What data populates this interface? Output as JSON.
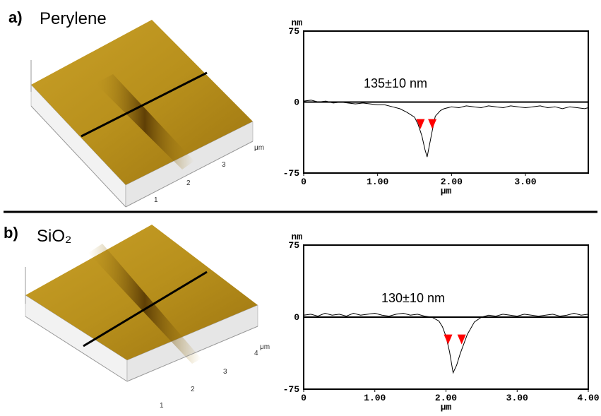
{
  "panels": [
    {
      "label": "a)",
      "title": "Perylene",
      "afm_axis_ticks": [
        "1",
        "2",
        "3"
      ],
      "afm_axis_unit": "μm"
    },
    {
      "label": "b)",
      "title": "SiO₂",
      "afm_axis_ticks": [
        "1",
        "2",
        "3",
        "4"
      ],
      "afm_axis_unit": "μm"
    }
  ],
  "chart_data": [
    {
      "type": "line",
      "y_label": "nm",
      "x_label": "μm",
      "annotation": "135±10 nm",
      "xlim": [
        0,
        3.85
      ],
      "ylim": [
        -75,
        75
      ],
      "xticks": [
        0,
        {
          "value": 1,
          "label": "1.00"
        },
        {
          "value": 2,
          "label": "2.00"
        },
        {
          "value": 3,
          "label": "3.00"
        }
      ],
      "yticks": [
        75,
        0,
        -75
      ],
      "series": [
        {
          "color": "#000000",
          "x": [
            0,
            0.1,
            0.2,
            0.3,
            0.4,
            0.5,
            0.6,
            0.7,
            0.8,
            0.9,
            1.0,
            1.1,
            1.2,
            1.3,
            1.4,
            1.5,
            1.55,
            1.6,
            1.64,
            1.67,
            1.7,
            1.74,
            1.78,
            1.85,
            1.9,
            2.0,
            2.1,
            2.2,
            2.3,
            2.4,
            2.5,
            2.6,
            2.7,
            2.8,
            2.9,
            3.0,
            3.1,
            3.2,
            3.3,
            3.4,
            3.5,
            3.6,
            3.7,
            3.8,
            3.85
          ],
          "values": [
            1,
            2,
            0,
            1,
            -1,
            0,
            -1,
            -2,
            -1,
            -2,
            -3,
            -3,
            -5,
            -7,
            -11,
            -16,
            -24,
            -36,
            -50,
            -58,
            -46,
            -30,
            -15,
            -9,
            -7,
            -5,
            -6,
            -4,
            -5,
            -6,
            -4,
            -5,
            -6,
            -4,
            -5,
            -6,
            -5,
            -4,
            -6,
            -5,
            -7,
            -5,
            -6,
            -7,
            -6
          ]
        }
      ],
      "cursors": {
        "x": [
          1.58,
          1.74
        ],
        "values": [
          -24,
          -24
        ],
        "color": "#ff0000"
      }
    },
    {
      "type": "line",
      "y_label": "nm",
      "x_label": "μm",
      "annotation": "130±10 nm",
      "xlim": [
        0,
        4
      ],
      "ylim": [
        -75,
        75
      ],
      "xticks": [
        0,
        {
          "value": 1,
          "label": "1.00"
        },
        {
          "value": 2,
          "label": "2.00"
        },
        {
          "value": 3,
          "label": "3.00"
        },
        {
          "value": 4,
          "label": "4.00"
        }
      ],
      "yticks": [
        75,
        0,
        -75
      ],
      "series": [
        {
          "color": "#000000",
          "x": [
            0,
            0.1,
            0.2,
            0.3,
            0.4,
            0.5,
            0.6,
            0.7,
            0.8,
            0.9,
            1.0,
            1.1,
            1.2,
            1.3,
            1.4,
            1.5,
            1.6,
            1.7,
            1.8,
            1.9,
            1.95,
            2.0,
            2.05,
            2.1,
            2.15,
            2.2,
            2.25,
            2.3,
            2.4,
            2.5,
            2.6,
            2.7,
            2.8,
            2.9,
            3.0,
            3.1,
            3.2,
            3.3,
            3.4,
            3.5,
            3.6,
            3.7,
            3.8,
            3.9,
            4.0
          ],
          "values": [
            2,
            3,
            1,
            4,
            2,
            3,
            1,
            4,
            2,
            3,
            4,
            2,
            1,
            3,
            4,
            2,
            3,
            1,
            0,
            -4,
            -10,
            -20,
            -36,
            -58,
            -50,
            -38,
            -28,
            -18,
            -5,
            0,
            2,
            1,
            3,
            2,
            1,
            3,
            2,
            1,
            2,
            3,
            1,
            2,
            4,
            2,
            3
          ]
        }
      ],
      "cursors": {
        "x": [
          2.03,
          2.22
        ],
        "values": [
          -24,
          -24
        ],
        "color": "#ff0000"
      }
    }
  ]
}
